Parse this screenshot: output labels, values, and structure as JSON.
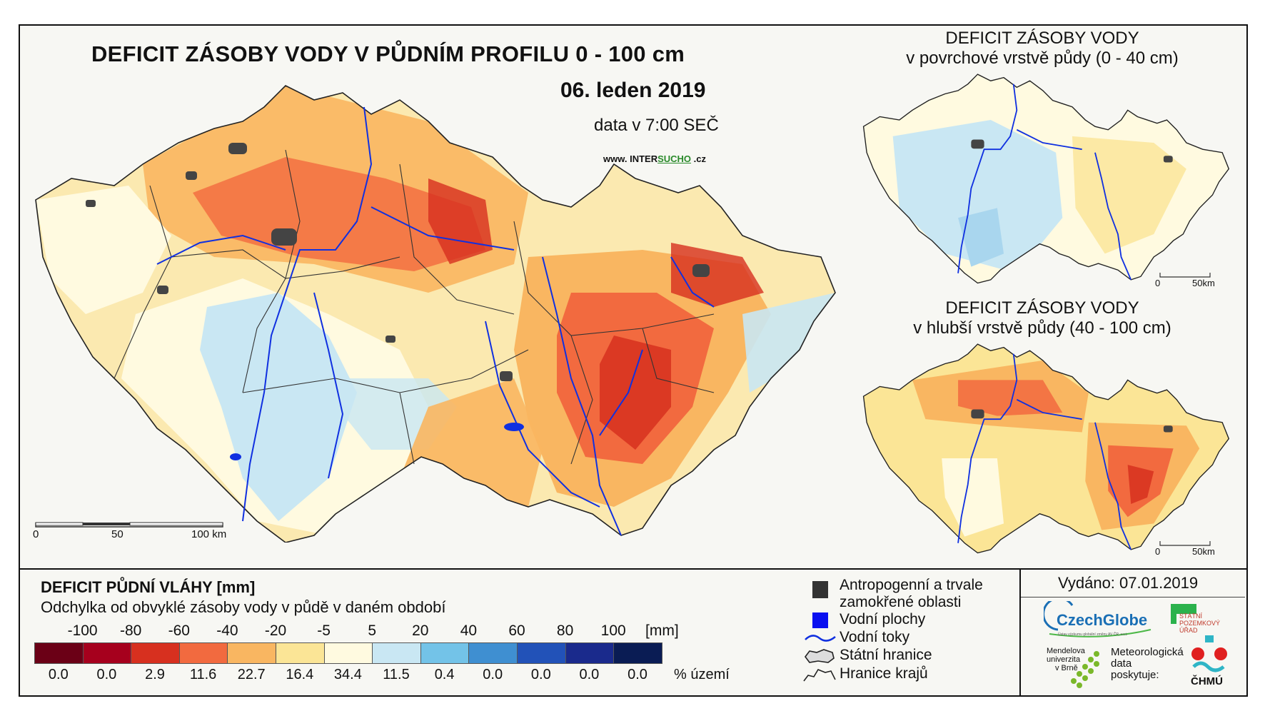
{
  "map": {
    "title": "DEFICIT ZÁSOBY VODY V PŮDNÍM PROFILU 0 - 100 cm",
    "date": "06. leden 2019",
    "data_time": "data v 7:00 SEČ",
    "website_prefix": "www. INTER",
    "website_mid": "SUCHO",
    "website_suffix": " .cz",
    "scale": {
      "t0": "0",
      "t1": "50",
      "t2": "100 km"
    }
  },
  "inset_top": {
    "title_line1": "DEFICIT ZÁSOBY VODY",
    "title_line2": "v povrchové vrstvě půdy (0 - 40 cm)",
    "scale": {
      "t0": "0",
      "t1": "50km"
    }
  },
  "inset_bottom": {
    "title_line1": "DEFICIT ZÁSOBY VODY",
    "title_line2": "v hlubší vrstvě půdy (40 - 100 cm)",
    "scale": {
      "t0": "0",
      "t1": "50km"
    }
  },
  "legend": {
    "title": "DEFICIT PŮDNÍ VLÁHY [mm]",
    "subtitle": "Odchylka od obvyklé zásoby vody v půdě v daném období",
    "ticks": [
      "-100",
      "-80",
      "-60",
      "-40",
      "-20",
      "-5",
      "5",
      "20",
      "40",
      "60",
      "80",
      "100"
    ],
    "unit": "[mm]",
    "colors": [
      "#6b0016",
      "#a6001d",
      "#d7301f",
      "#f26a3f",
      "#f9b661",
      "#fbe596",
      "#fffae0",
      "#c9e7f3",
      "#73c3e8",
      "#3f8fd1",
      "#2252b8",
      "#1a2a8c",
      "#0a1c54"
    ],
    "percentages": [
      "0.0",
      "0.0",
      "2.9",
      "11.6",
      "22.7",
      "16.4",
      "34.4",
      "11.5",
      "0.4",
      "0.0",
      "0.0",
      "0.0",
      "0.0"
    ],
    "pct_label": "% území"
  },
  "symbols": {
    "anthropogenic_line1": "Antropogenní a trvale",
    "anthropogenic_line2": "zamokřené oblasti",
    "water_bodies": "Vodní plochy",
    "streams": "Vodní toky",
    "state_border": "Státní hranice",
    "region_border": "Hranice krajů"
  },
  "issued": "Vydáno: 07.01.2019",
  "logos": {
    "czechglobe": "CzechGlobe",
    "czechglobe_sub": "Ústav výzkumu globální změny AV ČR, v.v.i.",
    "spu": "STÁTNÍ\nPOZEMKOVÝ\nÚŘAD",
    "mendelu_1": "Mendelova",
    "mendelu_2": "univerzita",
    "mendelu_3": "v Brně",
    "meteo_1": "Meteorologická",
    "meteo_2": "data",
    "meteo_3": "poskytuje:",
    "chmu": "ČHMÚ"
  }
}
